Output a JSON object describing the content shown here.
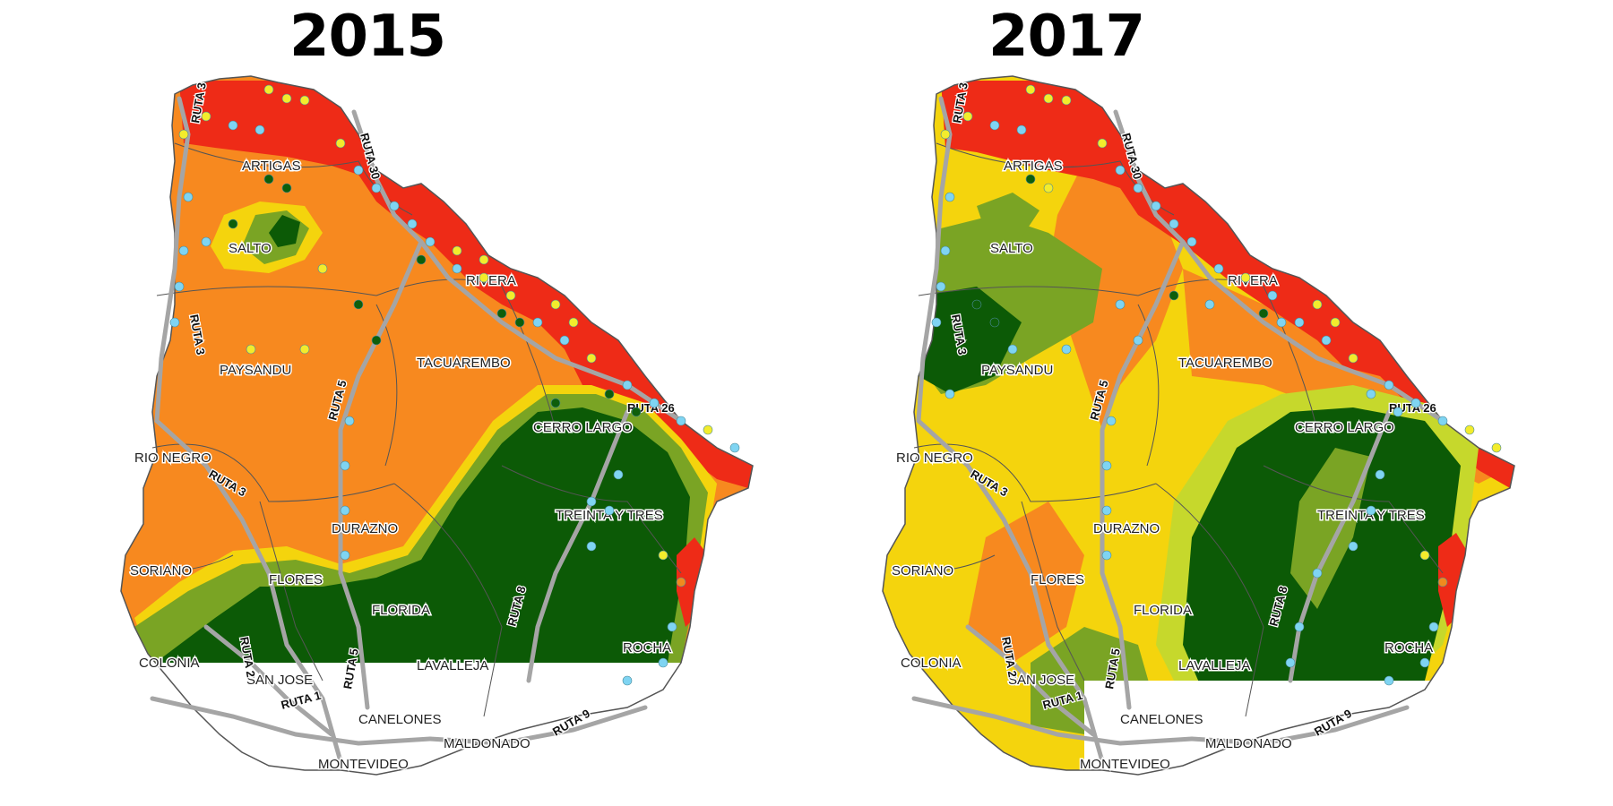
{
  "colors": {
    "red": "#ee2b17",
    "orange": "#f7891f",
    "yellow": "#f4d40d",
    "yellow_green": "#c6d82c",
    "light_green": "#7aa424",
    "dark_green": "#0c5a06",
    "route": "#a5a5a5",
    "dot_blue": "#7fd4f2",
    "dot_yellow": "#f3ec2c",
    "dot_green": "#0e5e0a",
    "dot_orange": "#f08a1e"
  },
  "maps": [
    {
      "year": "2015",
      "departments": [
        "ARTIGAS",
        "SALTO",
        "RIVERA",
        "PAYSANDU",
        "TACUAREMBO",
        "CERRO LARGO",
        "RIO NEGRO",
        "TREINTA Y TRES",
        "DURAZNO",
        "SORIANO",
        "FLORES",
        "FLORIDA",
        "COLONIA",
        "SAN JOSE",
        "LAVALLEJA",
        "ROCHA",
        "CANELONES",
        "MALDONADO",
        "MONTEVIDEO"
      ],
      "routes": [
        "RUTA 3",
        "RUTA 30",
        "RUTA 3",
        "RUTA 3",
        "RUTA 5",
        "RUTA 26",
        "RUTA 2",
        "RUTA 1",
        "RUTA 5",
        "RUTA 8",
        "RUTA 9"
      ]
    },
    {
      "year": "2017",
      "departments": [
        "ARTIGAS",
        "SALTO",
        "RIVERA",
        "PAYSANDU",
        "TACUAREMBO",
        "CERRO LARGO",
        "RIO NEGRO",
        "TREINTA Y TRES",
        "DURAZNO",
        "SORIANO",
        "FLORES",
        "FLORIDA",
        "COLONIA",
        "SAN JOSE",
        "LAVALLEJA",
        "ROCHA",
        "CANELONES",
        "MALDONADO",
        "MONTEVIDEO"
      ],
      "routes": [
        "RUTA 3",
        "RUTA 30",
        "RUTA 3",
        "RUTA 3",
        "RUTA 5",
        "RUTA 26",
        "RUTA 2",
        "RUTA 1",
        "RUTA 5",
        "RUTA 8",
        "RUTA 9"
      ]
    }
  ]
}
